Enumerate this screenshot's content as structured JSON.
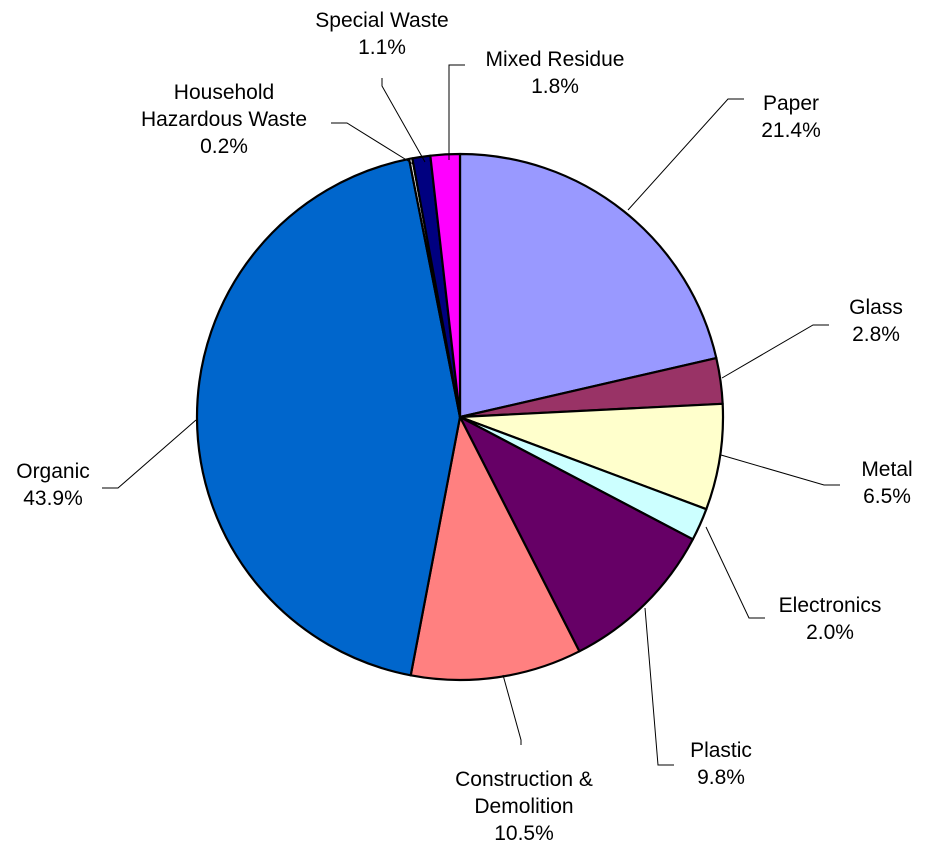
{
  "chart_data": {
    "type": "pie",
    "title": "",
    "unit": "%",
    "start_angle_deg": 0,
    "direction": "clockwise",
    "slices": [
      {
        "name": "Paper",
        "value": 21.4,
        "label": "21.4%",
        "color": "#9999FF"
      },
      {
        "name": "Glass",
        "value": 2.8,
        "label": "2.8%",
        "color": "#993366"
      },
      {
        "name": "Metal",
        "value": 6.5,
        "label": "6.5%",
        "color": "#FFFFCC"
      },
      {
        "name": "Electronics",
        "value": 2.0,
        "label": "2.0%",
        "color": "#CCFFFF"
      },
      {
        "name": "Plastic",
        "value": 9.8,
        "label": "9.8%",
        "color": "#660066"
      },
      {
        "name": "Construction & Demolition",
        "value": 10.5,
        "label": "10.5%",
        "color": "#FF8080"
      },
      {
        "name": "Organic",
        "value": 43.9,
        "label": "43.9%",
        "color": "#0066CC"
      },
      {
        "name": "Household Hazardous Waste",
        "value": 0.2,
        "label": "0.2%",
        "color": "#FFFFFF"
      },
      {
        "name": "Special Waste",
        "value": 1.1,
        "label": "1.1%",
        "color": "#000080"
      },
      {
        "name": "Mixed Residue",
        "value": 1.8,
        "label": "1.8%",
        "color": "#FF00FF"
      }
    ]
  }
}
